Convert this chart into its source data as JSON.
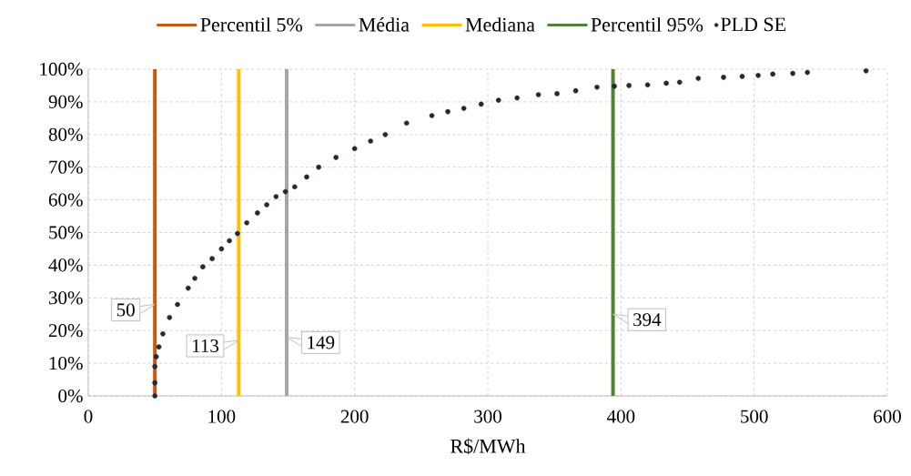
{
  "chart_data": {
    "type": "scatter",
    "xlabel": "R$/MWh",
    "xlim": [
      0,
      600
    ],
    "xticks": [
      0,
      100,
      200,
      300,
      400,
      500,
      600
    ],
    "ylim": [
      0,
      100
    ],
    "yticks": [
      {
        "value": 0,
        "label": "0%"
      },
      {
        "value": 10,
        "label": "10%"
      },
      {
        "value": 20,
        "label": "20%"
      },
      {
        "value": 30,
        "label": "30%"
      },
      {
        "value": 40,
        "label": "40%"
      },
      {
        "value": 50,
        "label": "50%"
      },
      {
        "value": 60,
        "label": "60%"
      },
      {
        "value": 70,
        "label": "70%"
      },
      {
        "value": 80,
        "label": "80%"
      },
      {
        "value": 90,
        "label": "90%"
      },
      {
        "value": 100,
        "label": "100%"
      }
    ],
    "grid": true,
    "legend": "top",
    "series": [
      {
        "name": "Percentil 5%",
        "type": "line",
        "marker": "none",
        "color": "#c55a11",
        "x": [
          50,
          50
        ],
        "values": [
          0,
          100
        ]
      },
      {
        "name": "Média",
        "type": "line",
        "marker": "none",
        "color": "#a5a5a5",
        "x": [
          149,
          149
        ],
        "values": [
          0,
          100
        ]
      },
      {
        "name": "Mediana",
        "type": "line",
        "marker": "none",
        "color": "#ffc000",
        "x": [
          113,
          113
        ],
        "values": [
          0,
          100
        ]
      },
      {
        "name": "Percentil 95%",
        "type": "line",
        "marker": "none",
        "color": "#548235",
        "x": [
          394,
          394
        ],
        "values": [
          0,
          100
        ]
      },
      {
        "name": "PLD SE",
        "marker": "circle",
        "color": "#222a35",
        "x": [
          50,
          50,
          50,
          51,
          53,
          56,
          61,
          67,
          75,
          80,
          86,
          93,
          100,
          106,
          112,
          119,
          127,
          134,
          141,
          148,
          155,
          164,
          173,
          186,
          200,
          212,
          223,
          239,
          258,
          270,
          282,
          295,
          308,
          322,
          338,
          352,
          366,
          382,
          395,
          406,
          420,
          434,
          444,
          458,
          477,
          491,
          503,
          514,
          529,
          540,
          584
        ],
        "values": [
          0,
          4,
          9,
          12,
          15,
          19,
          24,
          28,
          33,
          36,
          39.5,
          42,
          45,
          47.5,
          49.7,
          53,
          56,
          58.5,
          61,
          62.5,
          64,
          67,
          70,
          73,
          75.7,
          78,
          80,
          83.5,
          85.8,
          87,
          88,
          89.3,
          90.5,
          91.2,
          92.2,
          92.5,
          93.4,
          94.5,
          94.8,
          95,
          95.2,
          95.7,
          96,
          97.2,
          97.5,
          97.8,
          98.1,
          98.5,
          98.7,
          99,
          99.5
        ]
      }
    ],
    "annotations": [
      {
        "text": "50",
        "x": 50,
        "y": 28
      },
      {
        "text": "113",
        "x": 113,
        "y": 17
      },
      {
        "text": "149",
        "x": 149,
        "y": 18
      },
      {
        "text": "394",
        "x": 394,
        "y": 25
      }
    ]
  }
}
